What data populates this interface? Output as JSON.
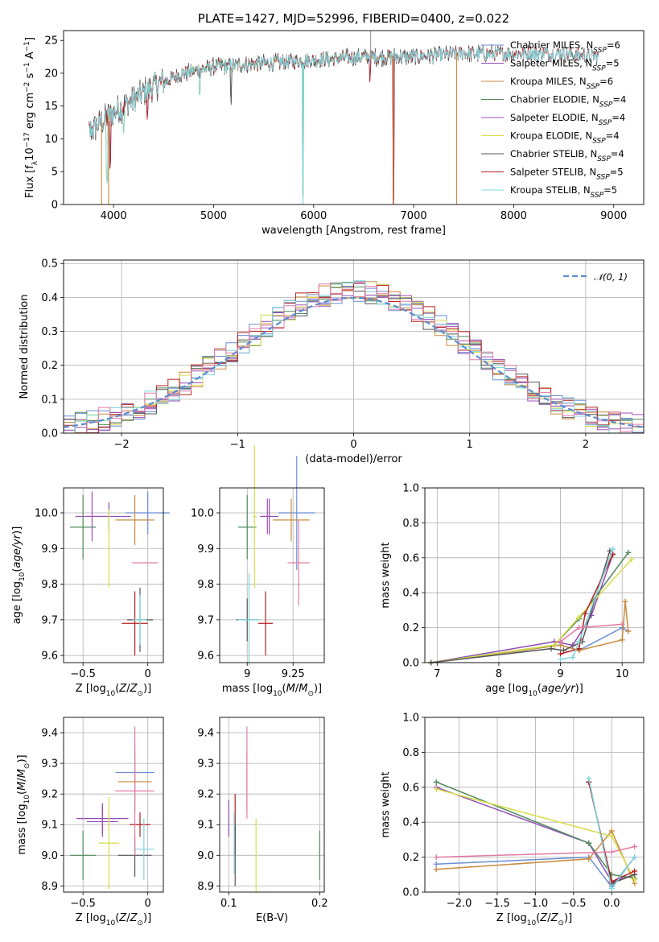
{
  "chart_data": [
    {
      "id": "spectrum",
      "type": "line",
      "title": "PLATE=1427, MJD=52996, FIBERID=0400, z=0.022",
      "xlabel": "wavelength [Angstrom, rest frame]",
      "ylabel": "Flux [f_λ10^-17 erg cm^-2 s^-1 A^-1]",
      "xlim": [
        3500,
        9300
      ],
      "ylim": [
        0,
        26.5
      ],
      "xticks": [
        4000,
        5000,
        6000,
        7000,
        8000,
        9000
      ],
      "yticks": [
        0,
        5,
        10,
        15,
        20,
        25
      ],
      "grid": false,
      "legend_position": "top-right",
      "series": [
        {
          "name": "Chabrier MILES, N_SSP=6",
          "color": "#6c8ed6",
          "range": [
            3750,
            7400
          ]
        },
        {
          "name": "Salpeter MILES, N_SSP=5",
          "color": "#8f4bb3",
          "range": [
            3750,
            7400
          ]
        },
        {
          "name": "Kroupa MILES, N_SSP=6",
          "color": "#c98a3c",
          "range": [
            3750,
            7430
          ]
        },
        {
          "name": "Chabrier ELODIE, N_SSP=4",
          "color": "#4f8a5b",
          "range": [
            3900,
            6800
          ]
        },
        {
          "name": "Salpeter ELODIE, N_SSP=4",
          "color": "#a150b8",
          "range": [
            3900,
            6800
          ]
        },
        {
          "name": "Kroupa ELODIE, N_SSP=4",
          "color": "#d6de4a",
          "range": [
            3900,
            6800
          ]
        },
        {
          "name": "Chabrier STELIB, N_SSP=4",
          "color": "#555555",
          "range": [
            3750,
            8850
          ]
        },
        {
          "name": "Salpeter STELIB, N_SSP=5",
          "color": "#b5201f",
          "range": [
            3750,
            8850
          ]
        },
        {
          "name": "Kroupa STELIB, N_SSP=5",
          "color": "#7fd6dc",
          "range": [
            3750,
            8850
          ]
        }
      ],
      "continuum_points": [
        [
          3750,
          11
        ],
        [
          4000,
          14
        ],
        [
          4200,
          16
        ],
        [
          4400,
          18
        ],
        [
          4700,
          20
        ],
        [
          5000,
          21
        ],
        [
          5500,
          21.5
        ],
        [
          6000,
          22
        ],
        [
          6500,
          22.5
        ],
        [
          7000,
          22.5
        ],
        [
          7500,
          23
        ],
        [
          8000,
          23
        ],
        [
          8500,
          23
        ],
        [
          8850,
          22.5
        ]
      ],
      "absorption_features": [
        [
          3934,
          9
        ],
        [
          3968,
          8
        ],
        [
          4102,
          3
        ],
        [
          4340,
          4
        ],
        [
          4861,
          3
        ],
        [
          5175,
          5
        ],
        [
          5893,
          20
        ],
        [
          6563,
          3
        ],
        [
          6800,
          22
        ]
      ]
    },
    {
      "id": "residuals",
      "type": "histogram",
      "xlabel": "(data-model)/error",
      "ylabel": "Normed distribution",
      "xlim": [
        -2.5,
        2.5
      ],
      "ylim": [
        0,
        0.51
      ],
      "xticks": [
        -2,
        -1,
        0,
        1,
        2
      ],
      "yticks": [
        0.0,
        0.1,
        0.2,
        0.3,
        0.4,
        0.5
      ],
      "grid": true,
      "legend_position": "top-right",
      "gaussian_label": "𝒩(0, 1)",
      "gaussian_color": "#5b8bd0",
      "bin_width": 0.1,
      "bins_start": -2.5,
      "hist_colors": [
        "#6c8ed6",
        "#8f4bb3",
        "#c98a3c",
        "#4f8a5b",
        "#a150b8",
        "#d6de4a",
        "#555555",
        "#b5201f",
        "#7fd6dc",
        "#e57aa7"
      ]
    },
    {
      "id": "age-vs-Z",
      "type": "scatter",
      "xlabel": "Z [log10(Z/Z⊙)]",
      "ylabel": "age  [log10(age/yr)]",
      "xlim": [
        -0.65,
        0.12
      ],
      "ylim": [
        9.58,
        10.07
      ],
      "xticks": [
        -0.5,
        0.0
      ],
      "yticks": [
        9.6,
        9.7,
        9.8,
        9.9,
        10.0
      ],
      "grid": true,
      "points": [
        {
          "x": 0.0,
          "y": 10.0,
          "xerr": 0.17,
          "yerr": 0.06,
          "color": "#6c8ed6"
        },
        {
          "x": -0.3,
          "y": 9.99,
          "xerr": 0.17,
          "yerr": 0.04,
          "color": "#8f4bb3"
        },
        {
          "x": -0.1,
          "y": 9.98,
          "xerr": 0.15,
          "yerr": 0.07,
          "color": "#c98a3c"
        },
        {
          "x": -0.5,
          "y": 9.96,
          "xerr": 0.1,
          "yerr": 0.09,
          "color": "#4f8a5b"
        },
        {
          "x": -0.43,
          "y": 9.99,
          "xerr": 0.13,
          "yerr": 0.07,
          "color": "#a150b8"
        },
        {
          "x": -0.3,
          "y": 9.9,
          "xerr": 0.0,
          "yerr": 0.11,
          "color": "#d6de4a"
        },
        {
          "x": -0.06,
          "y": 9.7,
          "xerr": 0.1,
          "yerr": 0.09,
          "color": "#555555"
        },
        {
          "x": -0.1,
          "y": 9.69,
          "xerr": 0.1,
          "yerr": 0.09,
          "color": "#b5201f"
        },
        {
          "x": -0.06,
          "y": 9.7,
          "xerr": 0.05,
          "yerr": 0.07,
          "color": "#7fd6dc"
        },
        {
          "x": -0.02,
          "y": 9.86,
          "xerr": 0.1,
          "yerr": 0.0,
          "color": "#e57aa7"
        }
      ]
    },
    {
      "id": "age-vs-mass",
      "type": "scatter",
      "xlabel": "mass [log10(M/M⊙)]",
      "ylabel": "",
      "xlim": [
        8.85,
        9.42
      ],
      "ylim": [
        9.58,
        10.07
      ],
      "xticks": [
        9.0,
        9.25
      ],
      "yticks": [
        9.6,
        9.7,
        9.8,
        9.9,
        10.0
      ],
      "grid": true,
      "points": [
        {
          "x": 9.27,
          "y": 10.0,
          "xerr": 0.1,
          "yerr": 0.16,
          "color": "#6c8ed6"
        },
        {
          "x": 9.12,
          "y": 9.99,
          "xerr": 0.05,
          "yerr": 0.05,
          "color": "#8f4bb3"
        },
        {
          "x": 9.24,
          "y": 9.98,
          "xerr": 0.1,
          "yerr": 0.06,
          "color": "#c98a3c"
        },
        {
          "x": 9.0,
          "y": 9.96,
          "xerr": 0.05,
          "yerr": 0.09,
          "color": "#4f8a5b"
        },
        {
          "x": 9.11,
          "y": 9.99,
          "xerr": 0.03,
          "yerr": 0.05,
          "color": "#a150b8"
        },
        {
          "x": 9.04,
          "y": 9.99,
          "xerr": 0.01,
          "yerr": 0.2,
          "color": "#d6de4a"
        },
        {
          "x": 9.0,
          "y": 9.7,
          "xerr": 0.06,
          "yerr": 0.06,
          "color": "#555555"
        },
        {
          "x": 9.1,
          "y": 9.69,
          "xerr": 0.04,
          "yerr": 0.09,
          "color": "#b5201f"
        },
        {
          "x": 9.01,
          "y": 9.7,
          "xerr": 0.06,
          "yerr": 0.13,
          "color": "#7fd6dc"
        },
        {
          "x": 9.28,
          "y": 9.86,
          "xerr": 0.06,
          "yerr": 0.12,
          "color": "#e57aa7"
        }
      ]
    },
    {
      "id": "massweight-vs-age",
      "type": "line",
      "xlabel": "age  [log10(age/yr)]",
      "ylabel": "mass weight",
      "xlim": [
        6.8,
        10.35
      ],
      "ylim": [
        0.0,
        1.0
      ],
      "xticks": [
        7,
        8,
        9,
        10
      ],
      "yticks": [
        0.0,
        0.2,
        0.4,
        0.6,
        0.8,
        1.0
      ],
      "grid": true,
      "series": [
        {
          "color": "#6c8ed6",
          "points": [
            [
              6.9,
              0.0
            ],
            [
              9.0,
              0.1
            ],
            [
              9.3,
              0.07
            ],
            [
              10.0,
              0.2
            ],
            [
              10.1,
              0.18
            ]
          ]
        },
        {
          "color": "#8f4bb3",
          "points": [
            [
              6.9,
              0.0
            ],
            [
              8.9,
              0.12
            ],
            [
              9.2,
              0.1
            ],
            [
              9.5,
              0.27
            ],
            [
              9.85,
              0.62
            ]
          ]
        },
        {
          "color": "#c98a3c",
          "points": [
            [
              6.9,
              0.0
            ],
            [
              9.0,
              0.1
            ],
            [
              9.3,
              0.07
            ],
            [
              10.0,
              0.13
            ],
            [
              10.05,
              0.35
            ],
            [
              10.1,
              0.18
            ]
          ]
        },
        {
          "color": "#4f8a5b",
          "points": [
            [
              6.9,
              0.0
            ],
            [
              8.9,
              0.1
            ],
            [
              9.3,
              0.25
            ],
            [
              10.1,
              0.63
            ]
          ]
        },
        {
          "color": "#d6de4a",
          "points": [
            [
              6.9,
              0.0
            ],
            [
              8.9,
              0.1
            ],
            [
              9.3,
              0.26
            ],
            [
              10.15,
              0.59
            ]
          ]
        },
        {
          "color": "#555555",
          "points": [
            [
              6.9,
              0.0
            ],
            [
              8.85,
              0.08
            ],
            [
              9.05,
              0.07
            ],
            [
              9.35,
              0.12
            ],
            [
              9.8,
              0.64
            ]
          ]
        },
        {
          "color": "#b5201f",
          "points": [
            [
              9.0,
              0.05
            ],
            [
              9.3,
              0.08
            ],
            [
              9.4,
              0.28
            ],
            [
              9.85,
              0.62
            ]
          ]
        },
        {
          "color": "#7fd6dc",
          "points": [
            [
              9.0,
              0.02
            ],
            [
              9.2,
              0.03
            ],
            [
              9.3,
              0.12
            ],
            [
              9.85,
              0.65
            ]
          ]
        },
        {
          "color": "#e57aa7",
          "points": [
            [
              9.0,
              0.12
            ],
            [
              9.3,
              0.2
            ],
            [
              10.0,
              0.22
            ]
          ]
        }
      ]
    },
    {
      "id": "mass-vs-Z",
      "type": "scatter",
      "xlabel": "Z [log10(Z/Z⊙)]",
      "ylabel": "mass [log10(M/M⊙)]",
      "xlim": [
        -0.65,
        0.12
      ],
      "ylim": [
        8.88,
        9.45
      ],
      "xticks": [
        -0.5,
        0.0
      ],
      "yticks": [
        8.9,
        9.0,
        9.1,
        9.2,
        9.3,
        9.4
      ],
      "grid": true,
      "points": [
        {
          "x": -0.1,
          "y": 9.27,
          "xerr": 0.15,
          "yerr": 0.1,
          "color": "#6c8ed6"
        },
        {
          "x": -0.35,
          "y": 9.12,
          "xerr": 0.2,
          "yerr": 0.05,
          "color": "#8f4bb3"
        },
        {
          "x": -0.1,
          "y": 9.24,
          "xerr": 0.13,
          "yerr": 0.1,
          "color": "#c98a3c"
        },
        {
          "x": -0.5,
          "y": 9.0,
          "xerr": 0.1,
          "yerr": 0.08,
          "color": "#4f8a5b"
        },
        {
          "x": -0.35,
          "y": 9.11,
          "xerr": 0.12,
          "yerr": 0.05,
          "color": "#a150b8"
        },
        {
          "x": -0.3,
          "y": 9.04,
          "xerr": 0.08,
          "yerr": 0.15,
          "color": "#d6de4a"
        },
        {
          "x": -0.1,
          "y": 9.0,
          "xerr": 0.13,
          "yerr": 0.07,
          "color": "#555555"
        },
        {
          "x": -0.06,
          "y": 9.1,
          "xerr": 0.08,
          "yerr": 0.04,
          "color": "#b5201f"
        },
        {
          "x": -0.03,
          "y": 9.02,
          "xerr": 0.08,
          "yerr": 0.1,
          "color": "#7fd6dc"
        },
        {
          "x": -0.1,
          "y": 9.21,
          "xerr": 0.15,
          "yerr": 0.21,
          "color": "#e57aa7"
        }
      ]
    },
    {
      "id": "mass-vs-ebv",
      "type": "scatter",
      "xlabel": "E(B-V)",
      "ylabel": "",
      "xlim": [
        0.09,
        0.205
      ],
      "ylim": [
        8.88,
        9.45
      ],
      "xticks": [
        0.1,
        0.2
      ],
      "yticks": [
        8.9,
        9.0,
        9.1,
        9.2,
        9.3,
        9.4
      ],
      "grid": true,
      "points": [
        {
          "x": 0.1,
          "y": 9.12,
          "xerr": 0.0,
          "yerr": 0.06,
          "color": "#8f4bb3"
        },
        {
          "x": 0.107,
          "y": 9.1,
          "xerr": 0.0,
          "yerr": 0.1,
          "color": "#b5201f"
        },
        {
          "x": 0.107,
          "y": 9.0,
          "xerr": 0.0,
          "yerr": 0.1,
          "color": "#555555"
        },
        {
          "x": 0.106,
          "y": 9.04,
          "xerr": 0.0,
          "yerr": 0.1,
          "color": "#7fd6dc"
        },
        {
          "x": 0.12,
          "y": 9.24,
          "xerr": 0.0,
          "yerr": 0.1,
          "color": "#c98a3c"
        },
        {
          "x": 0.12,
          "y": 9.27,
          "xerr": 0.0,
          "yerr": 0.15,
          "color": "#e57aa7"
        },
        {
          "x": 0.13,
          "y": 9.0,
          "xerr": 0.0,
          "yerr": 0.12,
          "color": "#d6de4a"
        },
        {
          "x": 0.2,
          "y": 9.0,
          "xerr": 0.0,
          "yerr": 0.08,
          "color": "#4f8a5b"
        }
      ]
    },
    {
      "id": "massweight-vs-Z",
      "type": "line",
      "xlabel": "Z [log10(Z/Z⊙)]",
      "ylabel": "mass weight",
      "xlim": [
        -2.45,
        0.42
      ],
      "ylim": [
        0.0,
        1.0
      ],
      "xticks": [
        -2.0,
        -1.5,
        -1.0,
        -0.5,
        0.0
      ],
      "yticks": [
        0.0,
        0.2,
        0.4,
        0.6,
        0.8,
        1.0
      ],
      "grid": true,
      "series": [
        {
          "color": "#6c8ed6",
          "points": [
            [
              -2.3,
              0.16
            ],
            [
              -0.3,
              0.2
            ],
            [
              0.0,
              0.03
            ],
            [
              0.3,
              0.2
            ]
          ]
        },
        {
          "color": "#8f4bb3",
          "points": [
            [
              -2.3,
              0.6
            ],
            [
              -0.3,
              0.28
            ],
            [
              0.0,
              0.06
            ],
            [
              0.3,
              0.1
            ]
          ]
        },
        {
          "color": "#c98a3c",
          "points": [
            [
              -2.3,
              0.13
            ],
            [
              -0.3,
              0.19
            ],
            [
              0.0,
              0.35
            ],
            [
              0.3,
              0.05
            ]
          ]
        },
        {
          "color": "#4f8a5b",
          "points": [
            [
              -2.3,
              0.63
            ],
            [
              -0.3,
              0.28
            ],
            [
              0.0,
              0.1
            ],
            [
              0.3,
              0.08
            ]
          ]
        },
        {
          "color": "#d6de4a",
          "points": [
            [
              -2.3,
              0.59
            ],
            [
              0.0,
              0.32
            ],
            [
              0.3,
              0.07
            ]
          ]
        },
        {
          "color": "#555555",
          "points": [
            [
              -0.3,
              0.63
            ],
            [
              0.0,
              0.05
            ],
            [
              0.3,
              0.1
            ]
          ]
        },
        {
          "color": "#b5201f",
          "points": [
            [
              -0.3,
              0.63
            ],
            [
              0.0,
              0.06
            ],
            [
              0.3,
              0.12
            ]
          ]
        },
        {
          "color": "#7fd6dc",
          "points": [
            [
              -0.3,
              0.65
            ],
            [
              0.0,
              0.02
            ],
            [
              0.3,
              0.2
            ]
          ]
        },
        {
          "color": "#e57aa7",
          "points": [
            [
              -2.3,
              0.2
            ],
            [
              0.0,
              0.23
            ],
            [
              0.3,
              0.26
            ]
          ]
        }
      ]
    }
  ]
}
